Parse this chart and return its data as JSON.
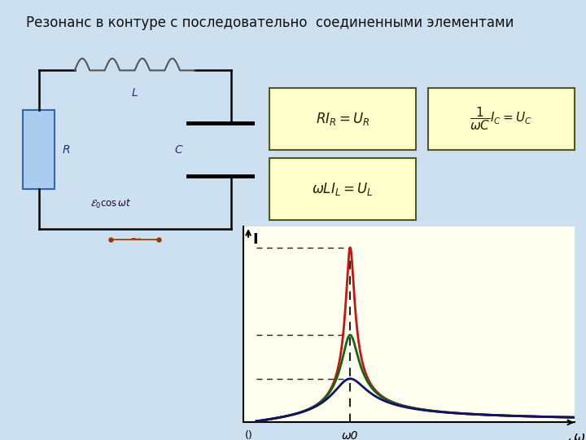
{
  "title": "Резонанс в контуре с последовательно  соединенными элементами",
  "title_fontsize": 12,
  "bg_color": "#cce0f0",
  "circuit_bg": "#e8f4ff",
  "plot_bg": "#fffff0",
  "curve_colors": [
    "#cc1111",
    "#116611",
    "#111166"
  ],
  "curve_Q": [
    12,
    6,
    3
  ],
  "omega0": 1.0,
  "x_label": "ω",
  "y_label": "I",
  "omega0_label": "ω0",
  "origin_label": "()",
  "dashed_color": "#222222",
  "formula_bg": "#ffffcc",
  "formula_border": "#555522",
  "formula_color": "#222200"
}
